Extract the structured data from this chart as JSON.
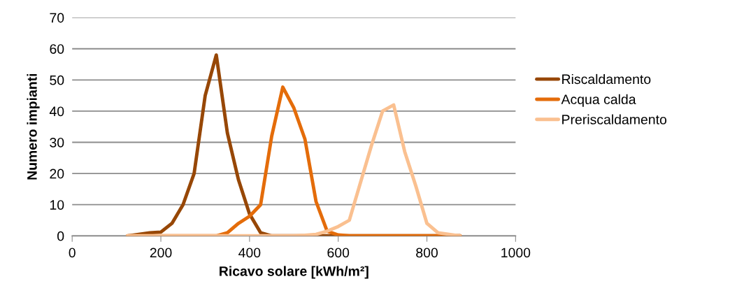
{
  "chart_data": {
    "type": "line",
    "xlabel": "Ricavo solare [kWh/m²]",
    "ylabel": "Numero impianti",
    "x": [
      125,
      150,
      175,
      200,
      225,
      250,
      275,
      300,
      325,
      350,
      375,
      400,
      425,
      450,
      475,
      500,
      525,
      550,
      575,
      600,
      625,
      650,
      675,
      700,
      725,
      750,
      775,
      800,
      825,
      850,
      875
    ],
    "series": [
      {
        "name": "Riscaldamento",
        "color": "#974706",
        "values": [
          0,
          0.5,
          1,
          1.2,
          4,
          10,
          20,
          45,
          58,
          33,
          18,
          7,
          1,
          0,
          0,
          0,
          0,
          0,
          0,
          0,
          0,
          0,
          0,
          0,
          0,
          0,
          0,
          0,
          0,
          0,
          0
        ]
      },
      {
        "name": "Acqua calda",
        "color": "#e46c0a",
        "values": [
          0,
          0,
          0,
          0,
          0,
          0,
          0,
          0,
          0,
          1,
          4,
          6.3,
          10,
          32,
          47.7,
          41,
          31,
          11,
          1.5,
          0.3,
          0,
          0,
          0,
          0,
          0,
          0,
          0,
          0,
          0,
          0,
          0
        ]
      },
      {
        "name": "Preriscaldamento",
        "color": "#fac090",
        "values": [
          0,
          0,
          0,
          0,
          0,
          0,
          0,
          0,
          0,
          0,
          0,
          0,
          0,
          0,
          0,
          0,
          0.2,
          0.5,
          1.5,
          3,
          5,
          17,
          29,
          40,
          42,
          27,
          16,
          4,
          1,
          0.5,
          0
        ]
      }
    ],
    "xlim": [
      0,
      1000
    ],
    "xticks": [
      0,
      200,
      400,
      600,
      800,
      1000
    ],
    "ylim": [
      0,
      70
    ],
    "yticks": [
      0,
      10,
      20,
      30,
      40,
      50,
      60,
      70
    ],
    "grid": "y",
    "legend": "right",
    "marker": "none",
    "line_style": "solid"
  }
}
